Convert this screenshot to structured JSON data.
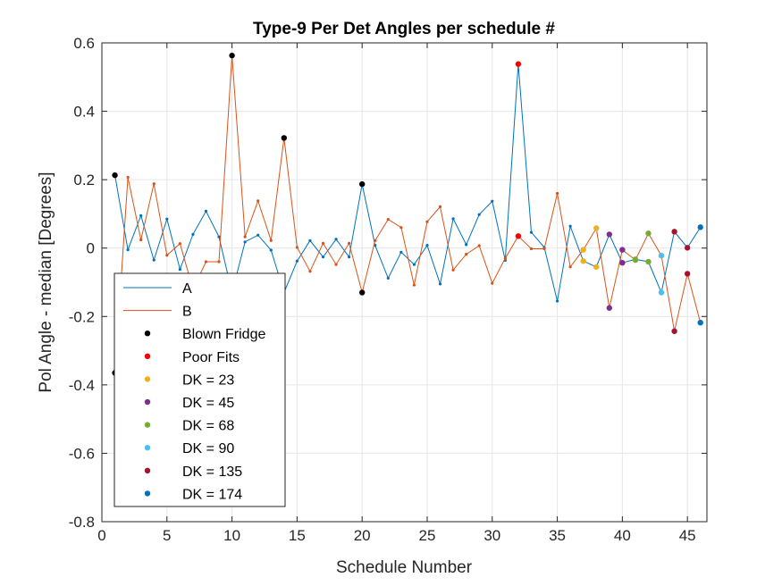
{
  "chart_data": {
    "type": "line",
    "title": "Type-9 Per Det Angles per schedule #",
    "xlabel": "Schedule Number",
    "ylabel": "Pol Angle - median [Degrees]",
    "xlim": [
      0,
      46.5
    ],
    "ylim": [
      -0.8,
      0.6
    ],
    "xticks": [
      0,
      5,
      10,
      15,
      20,
      25,
      30,
      35,
      40,
      45
    ],
    "yticks": [
      -0.8,
      -0.6,
      -0.4,
      -0.2,
      0,
      0.2,
      0.4,
      0.6
    ],
    "ytick_labels": [
      "-0.8",
      "-0.6",
      "-0.4",
      "-0.2",
      "0",
      "0.2",
      "0.4",
      "0.6"
    ],
    "grid": true,
    "legend_location": "lower-left",
    "series": [
      {
        "name": "A",
        "color": "#0072BD",
        "x": [
          1,
          2,
          3,
          4,
          5,
          6,
          7,
          8,
          9,
          10,
          11,
          12,
          13,
          14,
          15,
          16,
          17,
          18,
          19,
          20,
          21,
          22,
          23,
          24,
          25,
          26,
          27,
          28,
          29,
          30,
          31,
          32,
          33,
          34,
          35,
          36,
          37,
          38,
          39,
          40,
          41,
          42,
          43,
          44,
          45,
          46
        ],
        "y": [
          0.213,
          -0.005,
          0.095,
          -0.035,
          0.085,
          -0.062,
          0.04,
          0.108,
          0.033,
          -0.13,
          0.018,
          0.038,
          -0.006,
          -0.13,
          -0.038,
          0.022,
          -0.026,
          0.026,
          -0.026,
          0.187,
          0.008,
          -0.088,
          -0.012,
          -0.048,
          0.008,
          -0.105,
          0.086,
          0.01,
          0.098,
          0.137,
          -0.036,
          0.538,
          0.046,
          0.002,
          -0.155,
          0.064,
          -0.038,
          -0.055,
          0.04,
          -0.043,
          -0.033,
          -0.04,
          -0.13,
          0.048,
          0.001,
          0.061
        ]
      },
      {
        "name": "B",
        "color": "#D95319",
        "x": [
          1,
          2,
          3,
          4,
          5,
          6,
          7,
          8,
          9,
          10,
          11,
          12,
          13,
          14,
          15,
          16,
          17,
          18,
          19,
          20,
          21,
          22,
          23,
          24,
          25,
          26,
          27,
          28,
          29,
          30,
          31,
          32,
          33,
          34,
          35,
          36,
          37,
          38,
          39,
          40,
          41,
          42,
          43,
          44,
          45,
          46
        ],
        "y": [
          -0.365,
          0.207,
          0.024,
          0.188,
          -0.021,
          0.013,
          -0.12,
          -0.04,
          -0.04,
          0.563,
          0.033,
          0.138,
          0.022,
          0.322,
          0.002,
          -0.068,
          0.014,
          -0.048,
          0.014,
          -0.13,
          0.022,
          0.084,
          0.06,
          -0.108,
          0.077,
          0.121,
          -0.064,
          -0.018,
          0.007,
          -0.103,
          -0.03,
          0.035,
          -0.002,
          -0.002,
          0.16,
          -0.055,
          -0.005,
          0.058,
          -0.175,
          -0.005,
          -0.035,
          0.043,
          -0.022,
          -0.243,
          -0.075,
          -0.218
        ]
      },
      {
        "name": "Blown Fridge",
        "color": "#000000",
        "marker_only": true,
        "x": [
          1,
          1,
          10,
          14,
          20,
          20
        ],
        "y": [
          0.213,
          -0.365,
          0.563,
          0.322,
          0.187,
          -0.13
        ]
      },
      {
        "name": "Poor Fits",
        "color": "#FF0000",
        "marker_only": true,
        "x": [
          32,
          32
        ],
        "y": [
          0.538,
          0.035
        ]
      },
      {
        "name": "DK = 23",
        "color": "#EDB120",
        "marker_only": true,
        "x": [
          37,
          37,
          38,
          38
        ],
        "y": [
          -0.038,
          -0.005,
          -0.055,
          0.058
        ]
      },
      {
        "name": "DK = 45",
        "color": "#7E2F8E",
        "marker_only": true,
        "x": [
          39,
          39,
          40,
          40
        ],
        "y": [
          0.04,
          -0.175,
          -0.043,
          -0.005
        ]
      },
      {
        "name": "DK = 68",
        "color": "#77AC30",
        "marker_only": true,
        "x": [
          41,
          41,
          42,
          42
        ],
        "y": [
          -0.033,
          -0.035,
          -0.04,
          0.043
        ]
      },
      {
        "name": "DK = 90",
        "color": "#4DBEEE",
        "marker_only": true,
        "x": [
          43,
          43
        ],
        "y": [
          -0.13,
          -0.022
        ]
      },
      {
        "name": "DK = 135",
        "color": "#A2142F",
        "marker_only": true,
        "x": [
          44,
          44,
          45,
          45
        ],
        "y": [
          0.048,
          -0.243,
          0.001,
          -0.075
        ]
      },
      {
        "name": "DK = 174",
        "color": "#0072BD",
        "marker_only": true,
        "x": [
          46,
          46
        ],
        "y": [
          0.061,
          -0.218
        ]
      }
    ]
  }
}
